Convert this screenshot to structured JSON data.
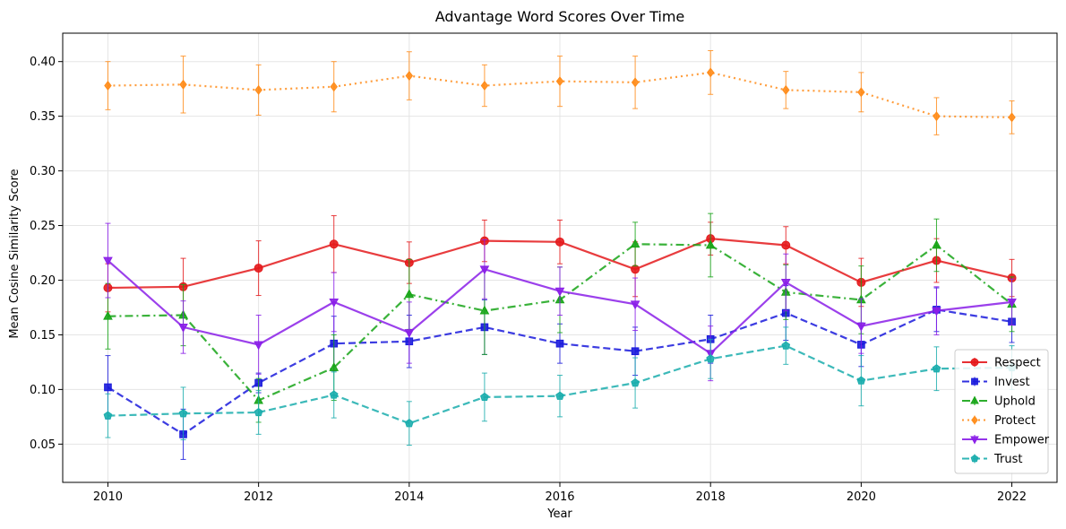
{
  "chart_data": {
    "type": "line",
    "title": "Advantage Word Scores Over Time",
    "xlabel": "Year",
    "ylabel": "Mean Cosine Similarity Score",
    "xlim": [
      2009.4,
      2022.6
    ],
    "ylim": [
      0.015,
      0.426
    ],
    "xticks": [
      2010,
      2012,
      2014,
      2016,
      2018,
      2020,
      2022
    ],
    "yticks": [
      0.05,
      0.1,
      0.15,
      0.2,
      0.25,
      0.3,
      0.35,
      0.4
    ],
    "yticks_labels": [
      "0.05",
      "0.10",
      "0.15",
      "0.20",
      "0.25",
      "0.30",
      "0.35",
      "0.40"
    ],
    "grid": true,
    "legend_position": "lower-right",
    "x": [
      2010,
      2011,
      2012,
      2013,
      2014,
      2015,
      2016,
      2017,
      2018,
      2019,
      2020,
      2021,
      2022
    ],
    "series": [
      {
        "name": "Respect",
        "color": "#e41a1c",
        "linestyle": "solid",
        "marker": "circle",
        "values": [
          0.193,
          0.194,
          0.211,
          0.233,
          0.216,
          0.236,
          0.235,
          0.21,
          0.238,
          0.232,
          0.198,
          0.218,
          0.202
        ],
        "errors": [
          0.022,
          0.026,
          0.025,
          0.026,
          0.019,
          0.019,
          0.02,
          0.025,
          0.015,
          0.017,
          0.022,
          0.02,
          0.017
        ]
      },
      {
        "name": "Invest",
        "color": "#1a1adc",
        "linestyle": "dashed",
        "marker": "square",
        "values": [
          0.102,
          0.059,
          0.106,
          0.142,
          0.144,
          0.157,
          0.142,
          0.135,
          0.146,
          0.17,
          0.141,
          0.173,
          0.162
        ],
        "errors": [
          0.029,
          0.023,
          0.009,
          0.025,
          0.024,
          0.025,
          0.018,
          0.022,
          0.022,
          0.025,
          0.02,
          0.02,
          0.019
        ]
      },
      {
        "name": "Uphold",
        "color": "#17a517",
        "linestyle": "dashdot",
        "marker": "triangle-up",
        "values": [
          0.167,
          0.168,
          0.09,
          0.12,
          0.187,
          0.172,
          0.182,
          0.233,
          0.232,
          0.189,
          0.182,
          0.232,
          0.178
        ],
        "errors": [
          0.03,
          0.028,
          0.02,
          0.03,
          0.032,
          0.04,
          0.03,
          0.02,
          0.029,
          0.025,
          0.031,
          0.024,
          0.025
        ]
      },
      {
        "name": "Protect",
        "color": "#ff8c1a",
        "linestyle": "dotted",
        "marker": "diamond",
        "values": [
          0.378,
          0.379,
          0.374,
          0.377,
          0.387,
          0.378,
          0.382,
          0.381,
          0.39,
          0.374,
          0.372,
          0.35,
          0.349
        ],
        "errors": [
          0.022,
          0.026,
          0.023,
          0.023,
          0.022,
          0.019,
          0.023,
          0.024,
          0.02,
          0.017,
          0.018,
          0.017,
          0.015
        ]
      },
      {
        "name": "Empower",
        "color": "#8a1ee8",
        "linestyle": "solid",
        "marker": "triangle-down",
        "values": [
          0.218,
          0.157,
          0.141,
          0.18,
          0.152,
          0.21,
          0.19,
          0.178,
          0.133,
          0.198,
          0.158,
          0.172,
          0.18
        ],
        "errors": [
          0.034,
          0.024,
          0.027,
          0.027,
          0.028,
          0.027,
          0.022,
          0.024,
          0.025,
          0.026,
          0.025,
          0.022,
          0.021
        ]
      },
      {
        "name": "Trust",
        "color": "#1aadad",
        "linestyle": "dashed",
        "marker": "pentagon",
        "values": [
          0.076,
          0.078,
          0.079,
          0.095,
          0.069,
          0.093,
          0.094,
          0.106,
          0.128,
          0.14,
          0.108,
          0.119,
          0.12
        ],
        "errors": [
          0.02,
          0.024,
          0.02,
          0.021,
          0.02,
          0.022,
          0.019,
          0.023,
          0.018,
          0.017,
          0.023,
          0.02,
          0.02
        ]
      }
    ]
  }
}
